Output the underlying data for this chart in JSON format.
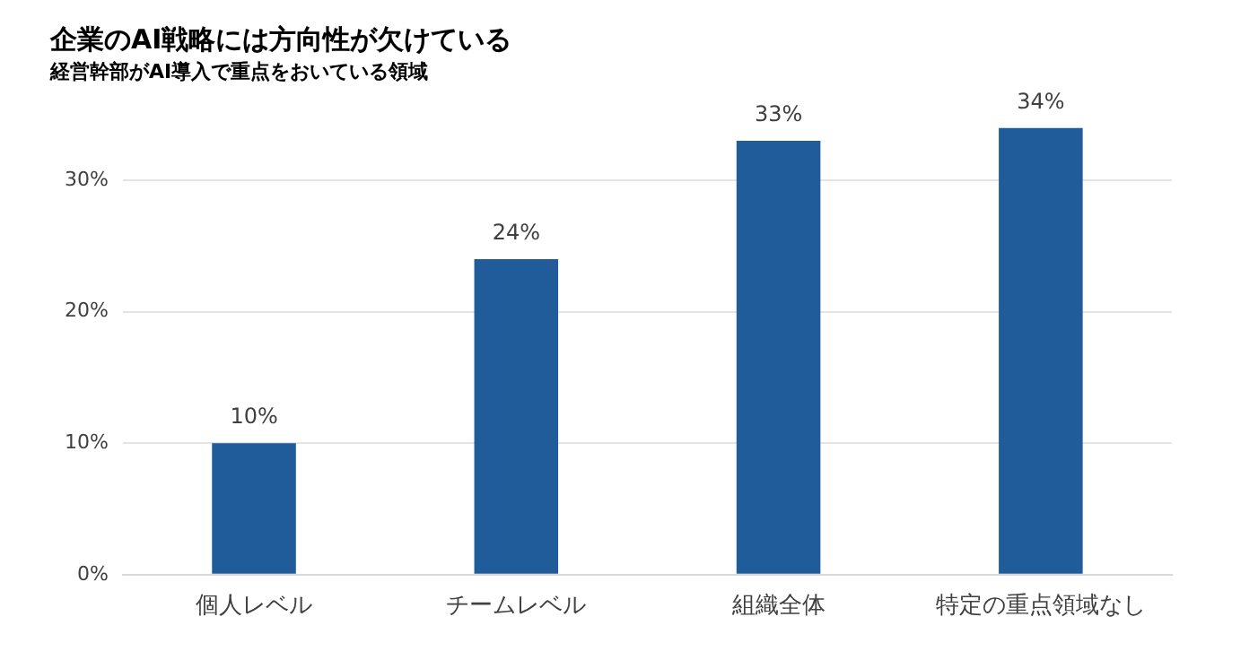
{
  "chart_data": {
    "type": "bar",
    "title": "企業のAI戦略には方向性が欠けている",
    "subtitle": "経営幹部がAI導入で重点をおいている領域",
    "categories": [
      "個人レベル",
      "チームレベル",
      "組織全体",
      "特定の重点領域なし"
    ],
    "values": [
      10,
      24,
      33,
      34
    ],
    "color": "#1f5c99",
    "value_labels": [
      "10%",
      "24%",
      "33%",
      "34%"
    ],
    "ylim": [
      0,
      34
    ],
    "yticks": [
      {
        "value": 0,
        "label": "0%"
      },
      {
        "value": 10,
        "label": "10%"
      },
      {
        "value": 20,
        "label": "20%"
      },
      {
        "value": 30,
        "label": "30%"
      }
    ],
    "grid": "y",
    "legend": false
  }
}
